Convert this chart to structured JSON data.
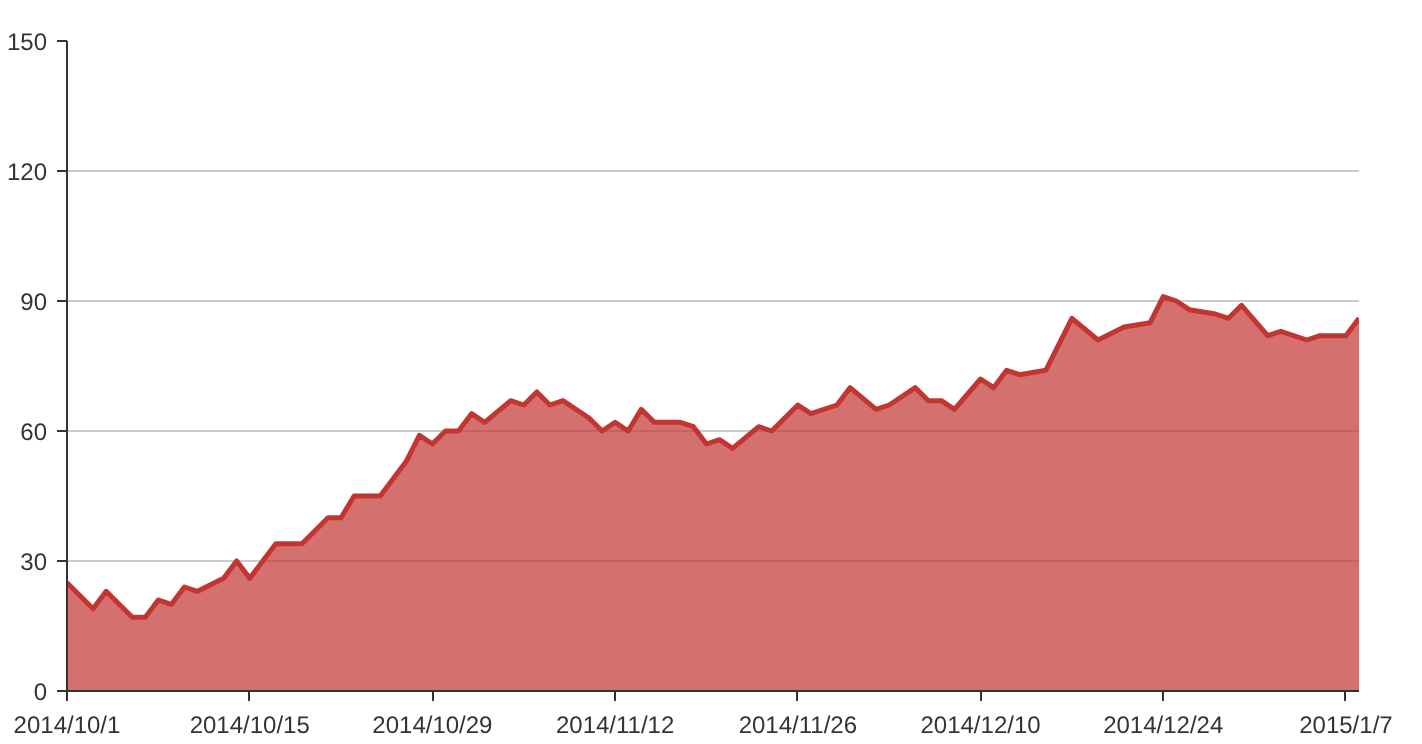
{
  "chart_data": {
    "type": "area",
    "x": [
      "2014-10-01",
      "2014-10-03",
      "2014-10-04",
      "2014-10-06",
      "2014-10-07",
      "2014-10-08",
      "2014-10-09",
      "2014-10-10",
      "2014-10-11",
      "2014-10-13",
      "2014-10-14",
      "2014-10-15",
      "2014-10-17",
      "2014-10-19",
      "2014-10-21",
      "2014-10-22",
      "2014-10-23",
      "2014-10-25",
      "2014-10-27",
      "2014-10-28",
      "2014-10-29",
      "2014-10-30",
      "2014-10-31",
      "2014-11-01",
      "2014-11-02",
      "2014-11-04",
      "2014-11-05",
      "2014-11-06",
      "2014-11-07",
      "2014-11-08",
      "2014-11-10",
      "2014-11-11",
      "2014-11-12",
      "2014-11-13",
      "2014-11-14",
      "2014-11-15",
      "2014-11-17",
      "2014-11-18",
      "2014-11-19",
      "2014-11-20",
      "2014-11-21",
      "2014-11-23",
      "2014-11-24",
      "2014-11-26",
      "2014-11-27",
      "2014-11-29",
      "2014-11-30",
      "2014-12-02",
      "2014-12-03",
      "2014-12-05",
      "2014-12-06",
      "2014-12-07",
      "2014-12-08",
      "2014-12-10",
      "2014-12-11",
      "2014-12-12",
      "2014-12-13",
      "2014-12-15",
      "2014-12-17",
      "2014-12-19",
      "2014-12-21",
      "2014-12-23",
      "2014-12-24",
      "2014-12-25",
      "2014-12-26",
      "2014-12-28",
      "2014-12-29",
      "2014-12-30",
      "2015-01-01",
      "2015-01-02",
      "2015-01-04",
      "2015-01-05",
      "2015-01-07",
      "2015-01-08"
    ],
    "series": [
      {
        "color": "#c23531",
        "values": [
          25,
          19,
          23,
          17,
          17,
          21,
          20,
          24,
          23,
          26,
          30,
          26,
          34,
          34,
          40,
          40,
          45,
          45,
          53,
          59,
          57,
          60,
          60,
          64,
          62,
          67,
          66,
          69,
          66,
          67,
          63,
          60,
          62,
          60,
          65,
          62,
          62,
          61,
          57,
          58,
          56,
          61,
          60,
          66,
          64,
          66,
          70,
          65,
          66,
          70,
          67,
          67,
          65,
          72,
          70,
          74,
          73,
          74,
          86,
          81,
          84,
          85,
          91,
          90,
          88,
          87,
          86,
          89,
          82,
          83,
          81,
          82,
          82,
          86
        ]
      }
    ],
    "xlim": [
      "2014-10-01",
      "2015-01-08"
    ],
    "xticks": [
      {
        "value": "2014-10-01",
        "label": "2014/10/1"
      },
      {
        "value": "2014-10-15",
        "label": "2014/10/15"
      },
      {
        "value": "2014-10-29",
        "label": "2014/10/29"
      },
      {
        "value": "2014-11-12",
        "label": "2014/11/12"
      },
      {
        "value": "2014-11-26",
        "label": "2014/11/26"
      },
      {
        "value": "2014-12-10",
        "label": "2014/12/10"
      },
      {
        "value": "2014-12-24",
        "label": "2014/12/24"
      },
      {
        "value": "2015-01-07",
        "label": "2015/1/7"
      }
    ],
    "ylim": [
      0,
      150
    ],
    "yticks": [
      0,
      30,
      60,
      90,
      120,
      150
    ],
    "grid": "y"
  }
}
